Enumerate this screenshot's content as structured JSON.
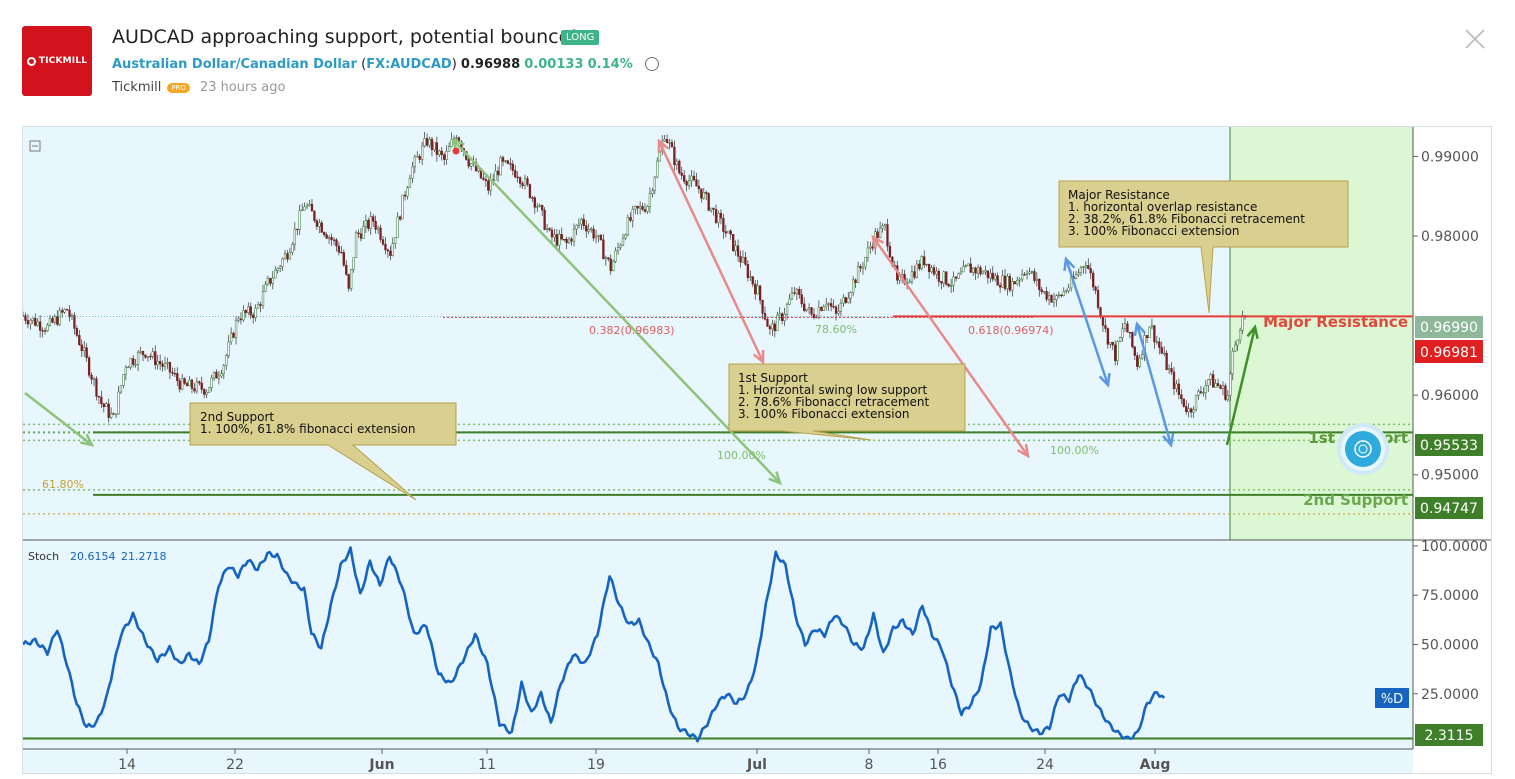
{
  "header": {
    "logo_text": "TICKMILL",
    "title": "AUDCAD approaching support, potential bounce!",
    "badge": "LONG",
    "symbol_name": "Australian Dollar/Canadian Dollar",
    "symbol_ticker": "FX:AUDCAD",
    "price": "0.96988",
    "change": "0.00133",
    "change_pct": "0.14%",
    "author": "Tickmill",
    "author_badge": "PRO",
    "time_ago": "23 hours ago"
  },
  "colors": {
    "background": "#e8f6fd",
    "candle": "#3a3a3a",
    "resistance_red": "#e63c3c",
    "support_green": "#3f7f2a",
    "fib_green": "#7fbf6a",
    "stoch_blue": "#1565c0",
    "target_zone": "#dcf7d4"
  },
  "chart_data": [
    {
      "type": "candlestick",
      "symbol": "AUDCAD",
      "x_tick_labels": [
        "14",
        "22",
        "Jun",
        "11",
        "19",
        "Jul",
        "8",
        "16",
        "24",
        "Aug"
      ],
      "y_tick_labels": [
        "0.99000",
        "0.98000",
        "0.96000",
        "0.95000"
      ],
      "ylim": [
        0.9418,
        0.9937
      ],
      "price_path": [
        [
          0,
          0.97
        ],
        [
          10,
          0.9685
        ],
        [
          18,
          0.9708
        ],
        [
          24,
          0.966
        ],
        [
          32,
          0.959
        ],
        [
          37,
          0.957
        ],
        [
          42,
          0.964
        ],
        [
          50,
          0.9655
        ],
        [
          60,
          0.963
        ],
        [
          65,
          0.9612
        ],
        [
          70,
          0.961
        ],
        [
          75,
          0.9608
        ],
        [
          82,
          0.964
        ],
        [
          88,
          0.97
        ],
        [
          95,
          0.9705
        ],
        [
          100,
          0.974
        ],
        [
          108,
          0.978
        ],
        [
          115,
          0.984
        ],
        [
          120,
          0.982
        ],
        [
          130,
          0.978
        ],
        [
          133,
          0.973
        ],
        [
          136,
          0.98
        ],
        [
          143,
          0.982
        ],
        [
          150,
          0.978
        ],
        [
          158,
          0.988
        ],
        [
          165,
          0.992
        ],
        [
          172,
          0.9895
        ],
        [
          177,
          0.993
        ],
        [
          182,
          0.9895
        ],
        [
          190,
          0.986
        ],
        [
          195,
          0.989
        ],
        [
          202,
          0.988
        ],
        [
          210,
          0.984
        ],
        [
          215,
          0.98
        ],
        [
          222,
          0.979
        ],
        [
          228,
          0.982
        ],
        [
          234,
          0.98
        ],
        [
          240,
          0.976
        ],
        [
          246,
          0.981
        ],
        [
          250,
          0.983
        ],
        [
          255,
          0.984
        ],
        [
          262,
          0.993
        ],
        [
          268,
          0.988
        ],
        [
          276,
          0.986
        ],
        [
          282,
          0.983
        ],
        [
          288,
          0.98
        ],
        [
          295,
          0.976
        ],
        [
          300,
          0.973
        ],
        [
          305,
          0.968
        ],
        [
          310,
          0.97
        ],
        [
          315,
          0.973
        ],
        [
          322,
          0.97
        ],
        [
          328,
          0.972
        ],
        [
          332,
          0.97
        ],
        [
          337,
          0.973
        ],
        [
          342,
          0.976
        ],
        [
          348,
          0.98
        ],
        [
          352,
          0.981
        ],
        [
          357,
          0.974
        ],
        [
          362,
          0.975
        ],
        [
          368,
          0.977
        ],
        [
          374,
          0.975
        ],
        [
          380,
          0.974
        ],
        [
          386,
          0.976
        ],
        [
          392,
          0.9755
        ],
        [
          398,
          0.9745
        ],
        [
          404,
          0.974
        ],
        [
          410,
          0.976
        ],
        [
          416,
          0.973
        ],
        [
          422,
          0.972
        ],
        [
          428,
          0.974
        ],
        [
          434,
          0.977
        ],
        [
          438,
          0.973
        ],
        [
          442,
          0.968
        ],
        [
          446,
          0.965
        ],
        [
          450,
          0.969
        ],
        [
          455,
          0.964
        ],
        [
          460,
          0.969
        ],
        [
          464,
          0.966
        ],
        [
          468,
          0.963
        ],
        [
          472,
          0.96
        ],
        [
          476,
          0.958
        ],
        [
          480,
          0.96
        ],
        [
          484,
          0.962
        ],
        [
          488,
          0.9612
        ],
        [
          492,
          0.96
        ],
        [
          494,
          0.965
        ],
        [
          497,
          0.969
        ],
        [
          499,
          0.9699
        ]
      ]
    },
    {
      "type": "line",
      "name": "Stoch",
      "indicator_values": [
        "20.6154",
        "21.2718"
      ],
      "y_tick_labels": [
        "100.0000",
        "75.0000",
        "50.0000",
        "25.0000"
      ],
      "ylim": [
        -2,
        102
      ],
      "label": "%D",
      "series_path": [
        [
          0,
          50
        ],
        [
          5,
          52
        ],
        [
          10,
          46
        ],
        [
          14,
          58
        ],
        [
          18,
          40
        ],
        [
          22,
          20
        ],
        [
          26,
          8
        ],
        [
          30,
          10
        ],
        [
          34,
          22
        ],
        [
          40,
          55
        ],
        [
          45,
          65
        ],
        [
          50,
          52
        ],
        [
          55,
          42
        ],
        [
          60,
          48
        ],
        [
          64,
          40
        ],
        [
          68,
          45
        ],
        [
          72,
          40
        ],
        [
          76,
          52
        ],
        [
          80,
          80
        ],
        [
          84,
          90
        ],
        [
          88,
          85
        ],
        [
          92,
          93
        ],
        [
          96,
          88
        ],
        [
          100,
          96
        ],
        [
          104,
          95
        ],
        [
          108,
          85
        ],
        [
          112,
          80
        ],
        [
          115,
          78
        ],
        [
          118,
          56
        ],
        [
          122,
          48
        ],
        [
          126,
          70
        ],
        [
          130,
          90
        ],
        [
          134,
          98
        ],
        [
          138,
          75
        ],
        [
          142,
          92
        ],
        [
          146,
          80
        ],
        [
          150,
          95
        ],
        [
          155,
          80
        ],
        [
          160,
          55
        ],
        [
          165,
          60
        ],
        [
          170,
          35
        ],
        [
          175,
          30
        ],
        [
          180,
          42
        ],
        [
          185,
          55
        ],
        [
          190,
          40
        ],
        [
          195,
          10
        ],
        [
          200,
          5
        ],
        [
          204,
          30
        ],
        [
          208,
          15
        ],
        [
          212,
          25
        ],
        [
          216,
          10
        ],
        [
          220,
          30
        ],
        [
          225,
          45
        ],
        [
          230,
          40
        ],
        [
          235,
          55
        ],
        [
          240,
          85
        ],
        [
          244,
          70
        ],
        [
          248,
          60
        ],
        [
          252,
          62
        ],
        [
          256,
          50
        ],
        [
          260,
          40
        ],
        [
          264,
          20
        ],
        [
          268,
          8
        ],
        [
          272,
          5
        ],
        [
          276,
          2
        ],
        [
          280,
          10
        ],
        [
          284,
          20
        ],
        [
          288,
          25
        ],
        [
          292,
          20
        ],
        [
          296,
          25
        ],
        [
          300,
          40
        ],
        [
          304,
          70
        ],
        [
          308,
          96
        ],
        [
          312,
          90
        ],
        [
          316,
          65
        ],
        [
          320,
          50
        ],
        [
          324,
          58
        ],
        [
          328,
          55
        ],
        [
          332,
          65
        ],
        [
          336,
          60
        ],
        [
          340,
          50
        ],
        [
          344,
          48
        ],
        [
          348,
          65
        ],
        [
          352,
          45
        ],
        [
          356,
          58
        ],
        [
          360,
          62
        ],
        [
          364,
          55
        ],
        [
          368,
          70
        ],
        [
          372,
          55
        ],
        [
          376,
          48
        ],
        [
          380,
          30
        ],
        [
          384,
          15
        ],
        [
          388,
          20
        ],
        [
          392,
          30
        ],
        [
          396,
          58
        ],
        [
          400,
          60
        ],
        [
          404,
          35
        ],
        [
          408,
          15
        ],
        [
          412,
          8
        ],
        [
          416,
          5
        ],
        [
          420,
          8
        ],
        [
          424,
          25
        ],
        [
          428,
          22
        ],
        [
          432,
          35
        ],
        [
          436,
          28
        ],
        [
          440,
          18
        ],
        [
          444,
          10
        ],
        [
          448,
          5
        ],
        [
          452,
          2
        ],
        [
          456,
          5
        ],
        [
          460,
          20
        ],
        [
          464,
          26
        ],
        [
          467,
          22
        ]
      ],
      "level_label": "2.3115"
    }
  ],
  "levels": {
    "major_resistance_price": "0.96990",
    "last_price": "0.96981",
    "support1_price": "0.95533",
    "support2_price": "0.94747"
  },
  "labels": {
    "major_resistance": "Major Resistance",
    "first_support": "1st Support",
    "second_support": "2nd Support",
    "fib_0382": "0.382(0.96983)",
    "fib_0618": "0.618(0.96974)",
    "fib_7860": "78.60%",
    "fib_100_a": "100.00%",
    "fib_100_b": "100.00%",
    "fib_618": "61.80%"
  },
  "callouts": {
    "major_resistance": [
      "Major Resistance",
      "1. horizontal overlap resistance",
      "2. 38.2%, 61.8% Fibonacci retracement",
      "3. 100% Fibonacci extension"
    ],
    "first_support": [
      "1st Support",
      "1. Horizontal swing low support",
      "2. 78.6% Fibonacci retracement",
      "3. 100% Fibonacci extension"
    ],
    "second_support": [
      "2nd Support",
      "1. 100%, 61.8% fibonacci extension"
    ]
  }
}
